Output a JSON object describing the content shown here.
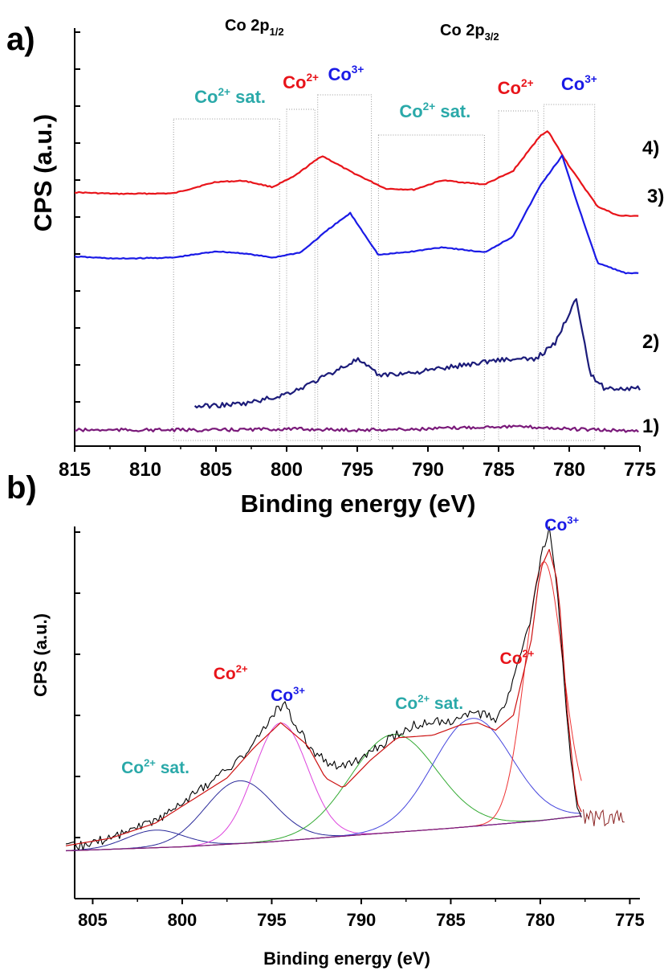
{
  "colors": {
    "red": "#e8141a",
    "blue": "#1a1ae6",
    "navy": "#1c1c7a",
    "purple": "#7a1a7a",
    "teal": "#2aa9a9",
    "darkred": "#cc1111",
    "black": "#000000"
  },
  "panels": [
    {
      "letter": "a)"
    },
    {
      "letter": "b)"
    }
  ],
  "chart_data": [
    {
      "panel": "a)",
      "type": "line",
      "xlabel": "Binding energy (eV)",
      "ylabel": "CPS (a.u.)",
      "xlim": [
        815,
        775
      ],
      "x_reversed": true,
      "x_ticks": [
        "815",
        "810",
        "805",
        "800",
        "795",
        "790",
        "785",
        "780",
        "775"
      ],
      "y_ticks_labeled": false,
      "headers": [
        {
          "main": "Co 2p",
          "sub": "1/2"
        },
        {
          "main": "Co 2p",
          "sub": "3/2"
        }
      ],
      "series": [
        {
          "name": "4)",
          "color": "red",
          "x": [
            815,
            812,
            808,
            805,
            803,
            801,
            799.5,
            797.5,
            795.5,
            793,
            791,
            789,
            786,
            784,
            782,
            781.5,
            780,
            778,
            776.5,
            775
          ],
          "y": [
            4.75,
            4.72,
            4.73,
            4.95,
            4.97,
            4.85,
            5.05,
            5.45,
            5.15,
            4.82,
            4.8,
            4.98,
            4.9,
            5.15,
            5.85,
            5.92,
            5.25,
            4.48,
            4.3,
            4.3
          ]
        },
        {
          "name": "3)",
          "color": "blue",
          "x": [
            815,
            812,
            808,
            805,
            803,
            801,
            799,
            797,
            795.5,
            793.5,
            791,
            789,
            786,
            784,
            782,
            780.5,
            779.5,
            778,
            776,
            775
          ],
          "y": [
            3.52,
            3.48,
            3.5,
            3.62,
            3.58,
            3.5,
            3.6,
            4.05,
            4.35,
            3.55,
            3.62,
            3.7,
            3.6,
            3.9,
            4.9,
            5.45,
            4.6,
            3.4,
            3.2,
            3.2
          ]
        },
        {
          "name": "2)",
          "color": "navy",
          "x": [
            806.5,
            803,
            800.5,
            799,
            797.5,
            795,
            793.5,
            791,
            788,
            785,
            782.5,
            781,
            779.5,
            778.5,
            777.5,
            775
          ],
          "y": [
            0.65,
            0.7,
            0.85,
            1.0,
            1.2,
            1.55,
            1.25,
            1.3,
            1.42,
            1.55,
            1.55,
            1.85,
            2.75,
            1.25,
            1.0,
            1.0
          ]
        },
        {
          "name": "1)",
          "color": "purple",
          "x": [
            815,
            810,
            805,
            800,
            795,
            790,
            785,
            782,
            780,
            778,
            775
          ],
          "y": [
            0.2,
            0.2,
            0.2,
            0.22,
            0.2,
            0.22,
            0.27,
            0.25,
            0.22,
            0.2,
            0.18
          ]
        }
      ],
      "annotations": [
        {
          "text": "Co",
          "sup": "2+",
          "suffix": " sat.",
          "color": "teal",
          "x_at": 804
        },
        {
          "text": "Co",
          "sup": "2+",
          "suffix": "",
          "color": "red",
          "x_at": 799
        },
        {
          "text": "Co",
          "sup": "3+",
          "suffix": "",
          "color": "blue",
          "x_at": 795.8
        },
        {
          "text": "Co",
          "sup": "2+",
          "suffix": " sat.",
          "color": "teal",
          "x_at": 789.5
        },
        {
          "text": "Co",
          "sup": "2+",
          "suffix": "",
          "color": "red",
          "x_at": 783.8
        },
        {
          "text": "Co",
          "sup": "3+",
          "suffix": "",
          "color": "blue",
          "x_at": 779.3
        }
      ],
      "region_bounds_eV": [
        [
          808,
          800.5
        ],
        [
          800,
          798
        ],
        [
          797.8,
          794
        ],
        [
          793.5,
          786
        ],
        [
          785,
          782.2
        ],
        [
          781.8,
          778.2
        ]
      ]
    },
    {
      "panel": "b)",
      "type": "line",
      "xlabel": "Binding energy (eV)",
      "ylabel": "CPS (a.u.)",
      "xlim": [
        806.5,
        775
      ],
      "x_reversed": true,
      "x_ticks": [
        "805",
        "800",
        "795",
        "790",
        "785",
        "780",
        "775"
      ],
      "y_ticks_labeled": false,
      "series": [
        {
          "name": "",
          "role": "spectrum",
          "color": "black",
          "x": [
            806.5,
            805,
            803,
            801,
            799.5,
            797.5,
            796,
            795,
            794.3,
            793.5,
            792.5,
            791.5,
            790,
            788.5,
            787,
            786,
            785,
            784,
            783,
            782.5,
            782,
            781.5,
            780.5,
            780,
            779.5,
            779,
            778.5,
            778,
            777.6
          ],
          "y": [
            1.05,
            1.15,
            1.4,
            1.7,
            2.1,
            2.6,
            3.1,
            3.7,
            3.95,
            3.4,
            2.9,
            2.7,
            2.8,
            3.2,
            3.5,
            3.55,
            3.6,
            3.7,
            3.7,
            3.6,
            3.9,
            4.4,
            5.6,
            6.8,
            7.4,
            6.0,
            3.5,
            1.9,
            1.55
          ]
        },
        {
          "name": "",
          "role": "envelope",
          "color": "darkred",
          "x": [
            806.5,
            804,
            801.5,
            799.5,
            797.5,
            796,
            794.5,
            793,
            792,
            791,
            789.5,
            788,
            786,
            784.5,
            783.5,
            782.5,
            781.5,
            780.5,
            780,
            779.5,
            779,
            778.5,
            778,
            777.6
          ],
          "y": [
            1.1,
            1.25,
            1.55,
            2.0,
            2.45,
            3.05,
            3.55,
            3.1,
            2.45,
            2.25,
            2.8,
            3.25,
            3.3,
            3.5,
            3.55,
            3.4,
            3.7,
            5.2,
            6.6,
            7.0,
            6.3,
            3.8,
            2.0,
            1.7
          ]
        },
        {
          "name": "",
          "role": "background",
          "color": "purple",
          "x": [
            806.5,
            800,
            795,
            790,
            785,
            780,
            777.6
          ],
          "y": [
            1.0,
            1.08,
            1.18,
            1.32,
            1.45,
            1.6,
            1.7
          ]
        }
      ],
      "components": [
        {
          "center": 801.5,
          "height": 0.35,
          "width": 1.6,
          "color": "#2a2a9a"
        },
        {
          "center": 796.8,
          "height": 1.25,
          "width": 1.9,
          "color": "#2a2a9a"
        },
        {
          "center": 794.5,
          "height": 2.35,
          "width": 1.5,
          "color": "#dd44dd"
        },
        {
          "center": 788.2,
          "height": 1.95,
          "width": 2.4,
          "color": "#33aa33"
        },
        {
          "center": 783.8,
          "height": 2.15,
          "width": 2.2,
          "color": "#4444dd"
        },
        {
          "center": 779.8,
          "height": 5.15,
          "width": 1.05,
          "color": "#ee3333"
        }
      ],
      "annotations": [
        {
          "text": "Co",
          "sup": "2+",
          "suffix": " sat.",
          "color": "teal",
          "x_at": 801.5
        },
        {
          "text": "Co",
          "sup": "2+",
          "suffix": "",
          "color": "red",
          "x_at": 797.3
        },
        {
          "text": "Co",
          "sup": "3+",
          "suffix": "",
          "color": "blue",
          "x_at": 794.1
        },
        {
          "text": "Co",
          "sup": "2+",
          "suffix": " sat.",
          "color": "teal",
          "x_at": 786.2
        },
        {
          "text": "Co",
          "sup": "2+",
          "suffix": "",
          "color": "red",
          "x_at": 781.3
        },
        {
          "text": "Co",
          "sup": "3+",
          "suffix": "",
          "color": "blue",
          "x_at": 778.8
        }
      ]
    }
  ]
}
